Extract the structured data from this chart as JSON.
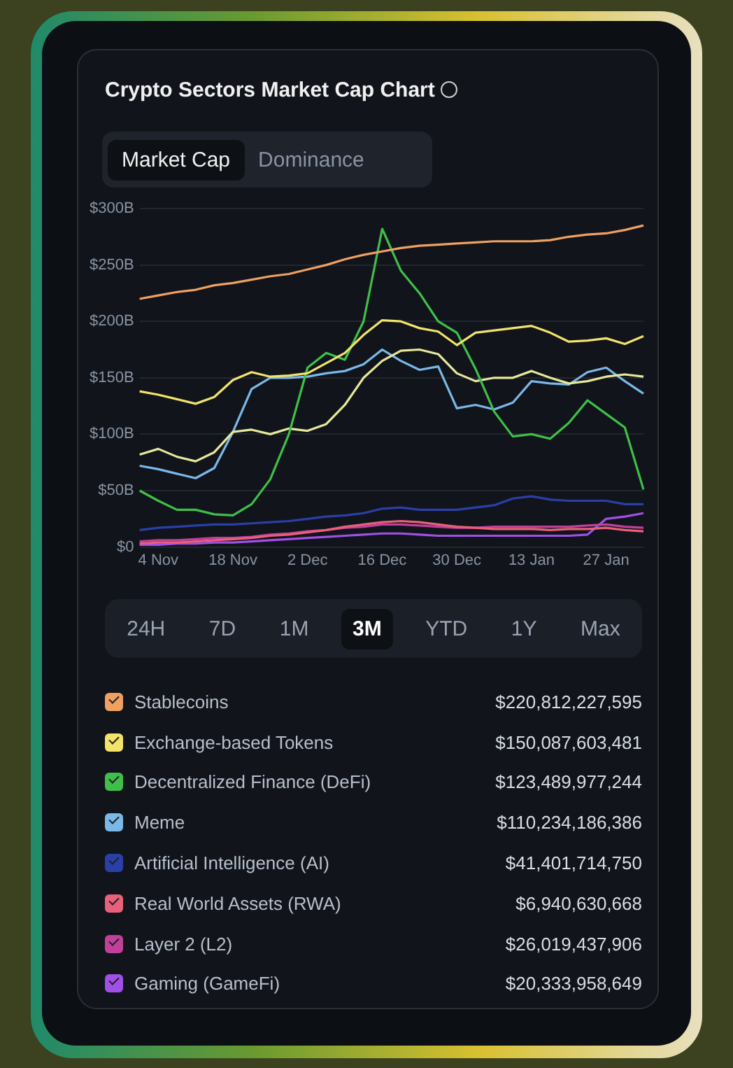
{
  "chart_data": {
    "type": "line",
    "title": "Crypto Sectors Market Cap Chart",
    "categories": [
      null,
      "4 Nov",
      null,
      null,
      null,
      "18 Nov",
      null,
      null,
      null,
      "2 Dec",
      null,
      null,
      null,
      "16 Dec",
      null,
      null,
      null,
      "30 Dec",
      null,
      null,
      null,
      "13 Jan",
      null,
      null,
      null,
      "27 Jan",
      null,
      null
    ],
    "series": [
      {
        "name": "Stablecoins",
        "color": "#f0a060",
        "values": [
          220,
          223,
          226,
          228,
          232,
          234,
          237,
          240,
          242,
          246,
          250,
          255,
          259,
          262,
          265,
          267,
          268,
          269,
          270,
          271,
          271,
          271,
          272,
          275,
          277,
          278,
          281,
          285
        ]
      },
      {
        "name": "Exchange-based Tokens",
        "color": "#f2e36a",
        "values": [
          138,
          135,
          131,
          127,
          133,
          148,
          155,
          151,
          152,
          154,
          163,
          172,
          188,
          201,
          200,
          194,
          191,
          179,
          190,
          192,
          194,
          196,
          190,
          182,
          183,
          185,
          180,
          187
        ]
      },
      {
        "name": "Decentralized Finance (DeFi)",
        "color": "#3fbf4a",
        "values": [
          50,
          41,
          33,
          33,
          29,
          28,
          38,
          60,
          100,
          159,
          172,
          166,
          200,
          282,
          245,
          225,
          200,
          190,
          158,
          120,
          98,
          100,
          96,
          110,
          130,
          118,
          106,
          51
        ]
      },
      {
        "color": "#e6e89a",
        "values": [
          82,
          87,
          80,
          76,
          84,
          102,
          104,
          100,
          105,
          103,
          109,
          126,
          150,
          165,
          174,
          175,
          171,
          154,
          147,
          150,
          150,
          156,
          150,
          145,
          147,
          151,
          153,
          151
        ]
      },
      {
        "name": "Meme",
        "color": "#7ab8e8",
        "values": [
          72,
          69,
          65,
          61,
          70,
          102,
          140,
          150,
          150,
          151,
          154,
          156,
          162,
          175,
          165,
          157,
          160,
          123,
          126,
          122,
          128,
          147,
          145,
          144,
          155,
          159,
          147,
          136
        ]
      },
      {
        "name": "Artificial Intelligence (AI)",
        "color": "#2a3fa8",
        "values": [
          15,
          17,
          18,
          19,
          20,
          20,
          21,
          22,
          23,
          25,
          27,
          28,
          30,
          34,
          35,
          33,
          33,
          33,
          35,
          37,
          43,
          45,
          42,
          41,
          41,
          41,
          38,
          38
        ]
      },
      {
        "name": "Real World Assets (RWA)",
        "color": "#e8607a",
        "values": [
          3,
          4,
          4,
          5,
          6,
          7,
          8,
          10,
          11,
          13,
          15,
          18,
          20,
          22,
          23,
          22,
          20,
          18,
          17,
          16,
          16,
          16,
          15,
          16,
          16,
          17,
          15,
          14
        ]
      },
      {
        "name": "Layer 2 (L2)",
        "color": "#c0409a",
        "values": [
          5,
          6,
          6,
          7,
          8,
          8,
          9,
          11,
          12,
          14,
          15,
          17,
          18,
          20,
          20,
          19,
          18,
          17,
          17,
          18,
          18,
          18,
          18,
          18,
          19,
          20,
          18,
          17
        ]
      },
      {
        "name": "Gaming (GameFi)",
        "color": "#a050e8",
        "values": [
          2,
          2,
          3,
          3,
          4,
          4,
          5,
          6,
          7,
          8,
          9,
          10,
          11,
          12,
          12,
          11,
          10,
          10,
          10,
          10,
          10,
          10,
          10,
          10,
          11,
          25,
          27,
          30
        ]
      }
    ],
    "ylim": [
      0,
      300
    ],
    "yticks": [
      {
        "value": 0,
        "label": "$0"
      },
      {
        "value": 50,
        "label": "$50B"
      },
      {
        "value": 100,
        "label": "$100B"
      },
      {
        "value": 150,
        "label": "$150B"
      },
      {
        "value": 200,
        "label": "$200B"
      },
      {
        "value": 250,
        "label": "$250B"
      },
      {
        "value": 300,
        "label": "$300B"
      }
    ],
    "grid": "y",
    "legend": "bottom",
    "marker": "none",
    "line_style": "solid",
    "annotations": [
      "Market Cap",
      "Dominance",
      "24H",
      "7D",
      "1M",
      "3M",
      "YTD",
      "1Y",
      "Max",
      "$220,812,227,595",
      "$150,087,603,481",
      "$123,489,977,244",
      "$110,234,186,386",
      "$41,401,714,750",
      "$6,940,630,668",
      "$26,019,437,906",
      "$20,333,958,649"
    ]
  }
}
